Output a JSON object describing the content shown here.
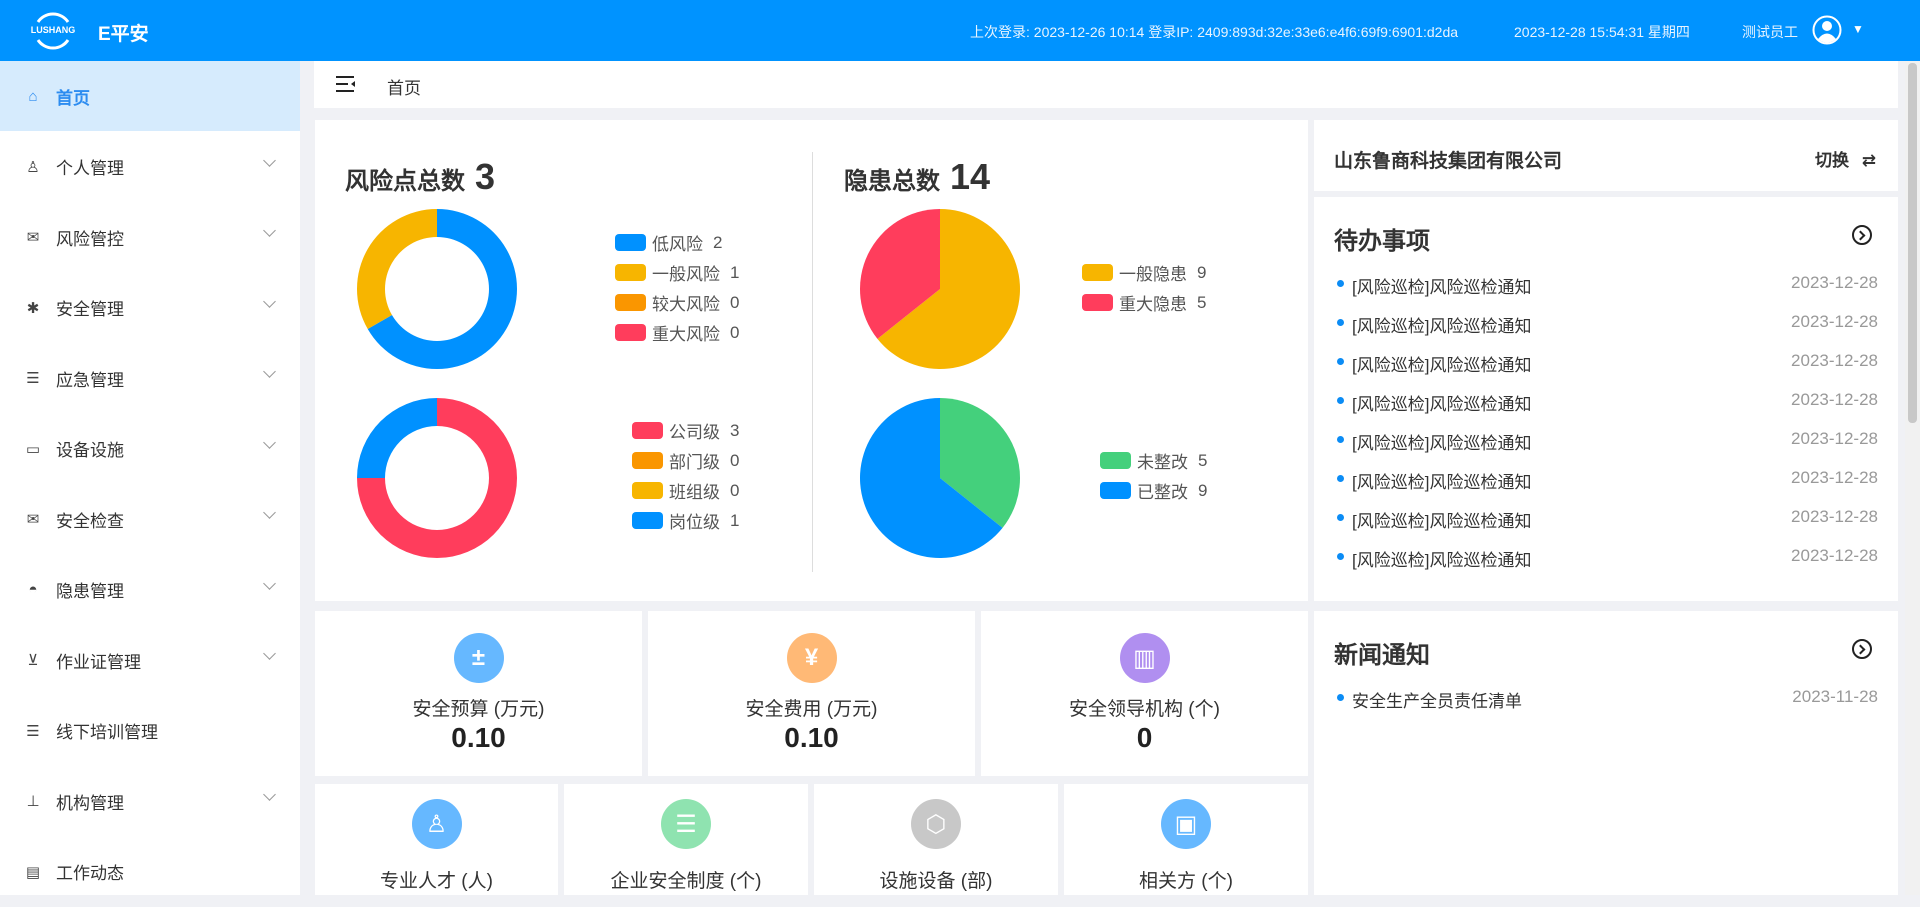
{
  "header": {
    "app_title": "E平安",
    "logo_text": "LUSHANG SECURITY",
    "login_info": "上次登录: 2023-12-26 10:14 登录IP: 2409:893d:32e:33e6:e4f6:69f9:6901:d2da",
    "clock": "2023-12-28 15:54:31 星期四",
    "user_name": "测试员工"
  },
  "breadcrumb": {
    "current": "首页"
  },
  "sidebar": {
    "items": [
      {
        "label": "首页",
        "icon": "home-icon",
        "active": true,
        "expandable": false
      },
      {
        "label": "个人管理",
        "icon": "user-icon",
        "expandable": true
      },
      {
        "label": "风险管控",
        "icon": "mail-icon",
        "expandable": true
      },
      {
        "label": "安全管理",
        "icon": "bug-icon",
        "expandable": true
      },
      {
        "label": "应急管理",
        "icon": "list-indent-icon",
        "expandable": true
      },
      {
        "label": "设备设施",
        "icon": "monitor-icon",
        "expandable": true
      },
      {
        "label": "安全检查",
        "icon": "mail-icon",
        "expandable": true
      },
      {
        "label": "隐患管理",
        "icon": "dashboard-icon",
        "expandable": true
      },
      {
        "label": "作业证管理",
        "icon": "presentation-icon",
        "expandable": true
      },
      {
        "label": "线下培训管理",
        "icon": "list-icon",
        "expandable": false
      },
      {
        "label": "机构管理",
        "icon": "org-chart-icon",
        "expandable": true
      },
      {
        "label": "工作动态",
        "icon": "news-icon",
        "expandable": false
      }
    ]
  },
  "panels": {
    "risk_title": "风险点总数",
    "risk_total": "3",
    "hazard_title": "隐患总数",
    "hazard_total": "14"
  },
  "chart_data": [
    {
      "type": "pie",
      "variant": "donut",
      "categories": [
        "低风险",
        "一般风险",
        "较大风险",
        "重大风险"
      ],
      "values": [
        2,
        1,
        0,
        0
      ],
      "colors": [
        "#0091ff",
        "#f7b500",
        "#fa9600",
        "#ff3d5c"
      ]
    },
    {
      "type": "pie",
      "variant": "donut",
      "categories": [
        "公司级",
        "部门级",
        "班组级",
        "岗位级"
      ],
      "values": [
        3,
        0,
        0,
        1
      ],
      "colors": [
        "#ff3d5c",
        "#fa9600",
        "#f7b500",
        "#0091ff"
      ]
    },
    {
      "type": "pie",
      "categories": [
        "一般隐患",
        "重大隐患"
      ],
      "values": [
        9,
        5
      ],
      "colors": [
        "#f7b500",
        "#ff3d5c"
      ]
    },
    {
      "type": "pie",
      "categories": [
        "未整改",
        "已整改"
      ],
      "values": [
        5,
        9
      ],
      "colors": [
        "#44d07c",
        "#0091ff"
      ]
    }
  ],
  "company": {
    "name": "山东鲁商科技集团有限公司",
    "switch_label": "切换"
  },
  "todo": {
    "title": "待办事项",
    "items": [
      {
        "text": "[风险巡检]风险巡检通知",
        "date": "2023-12-28"
      },
      {
        "text": "[风险巡检]风险巡检通知",
        "date": "2023-12-28"
      },
      {
        "text": "[风险巡检]风险巡检通知",
        "date": "2023-12-28"
      },
      {
        "text": "[风险巡检]风险巡检通知",
        "date": "2023-12-28"
      },
      {
        "text": "[风险巡检]风险巡检通知",
        "date": "2023-12-28"
      },
      {
        "text": "[风险巡检]风险巡检通知",
        "date": "2023-12-28"
      },
      {
        "text": "[风险巡检]风险巡检通知",
        "date": "2023-12-28"
      },
      {
        "text": "[风险巡检]风险巡检通知",
        "date": "2023-12-28"
      }
    ]
  },
  "news": {
    "title": "新闻通知",
    "items": [
      {
        "text": "安全生产全员责任清单",
        "date": "2023-11-28"
      }
    ]
  },
  "stats": [
    {
      "label": "安全预算 (万元)",
      "value": "0.10",
      "icon": "calculator-icon",
      "color": "#66b8ff"
    },
    {
      "label": "安全费用 (万元)",
      "value": "0.10",
      "icon": "money-icon",
      "color": "#ffb976"
    },
    {
      "label": "安全领导机构 (个)",
      "value": "0",
      "icon": "building-icon",
      "color": "#b08ff0"
    },
    {
      "label": "专业人才 (人)",
      "icon": "person-icon",
      "color": "#66b8ff"
    },
    {
      "label": "企业安全制度 (个)",
      "icon": "document-icon",
      "color": "#8fe3b0"
    },
    {
      "label": "设施设备 (部)",
      "icon": "cube-icon",
      "color": "#c8c8c8"
    },
    {
      "label": "相关方 (个)",
      "icon": "id-card-icon",
      "color": "#66b8ff"
    }
  ]
}
